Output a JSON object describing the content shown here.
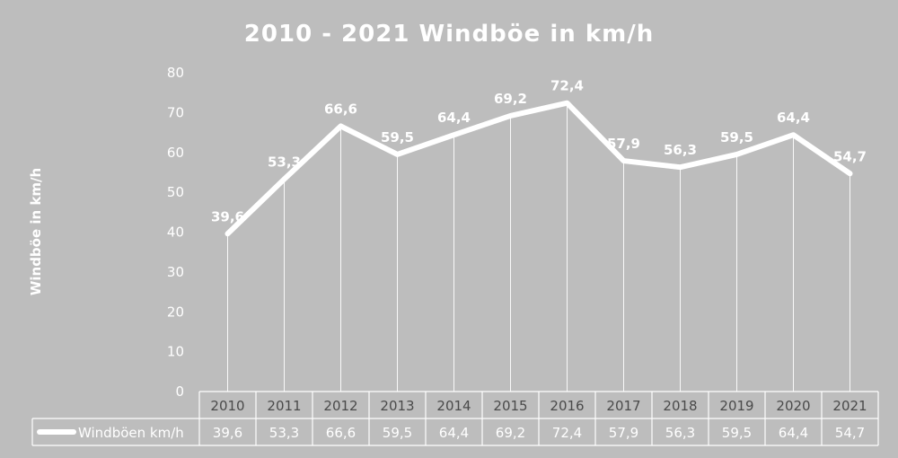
{
  "colors": {
    "background": "#bdbdbd",
    "line": "#ffffff",
    "text": "#ffffff",
    "axis_text": "#4a4a4a"
  },
  "chart_data": {
    "type": "line",
    "title": "2010 - 2021  Windböe in  km/h",
    "xlabel": "",
    "ylabel": "Windböe in km/h",
    "ylim": [
      0,
      80
    ],
    "yticks": [
      0,
      10,
      20,
      30,
      40,
      50,
      60,
      70,
      80
    ],
    "grid": "vertical drop lines",
    "legend": "data table below chart",
    "categories": [
      "2010",
      "2011",
      "2012",
      "2013",
      "2014",
      "2015",
      "2016",
      "2017",
      "2018",
      "2019",
      "2020",
      "2021"
    ],
    "series": [
      {
        "name": "Windböen  km/h",
        "values": [
          39.6,
          53.3,
          66.6,
          59.5,
          64.4,
          69.2,
          72.4,
          57.9,
          56.3,
          59.5,
          64.4,
          54.7
        ],
        "labels": [
          "39,6",
          "53,3",
          "66,6",
          "59,5",
          "64,4",
          "69,2",
          "72,4",
          "57,9",
          "56,3",
          "59,5",
          "64,4",
          "54,7"
        ]
      }
    ]
  }
}
